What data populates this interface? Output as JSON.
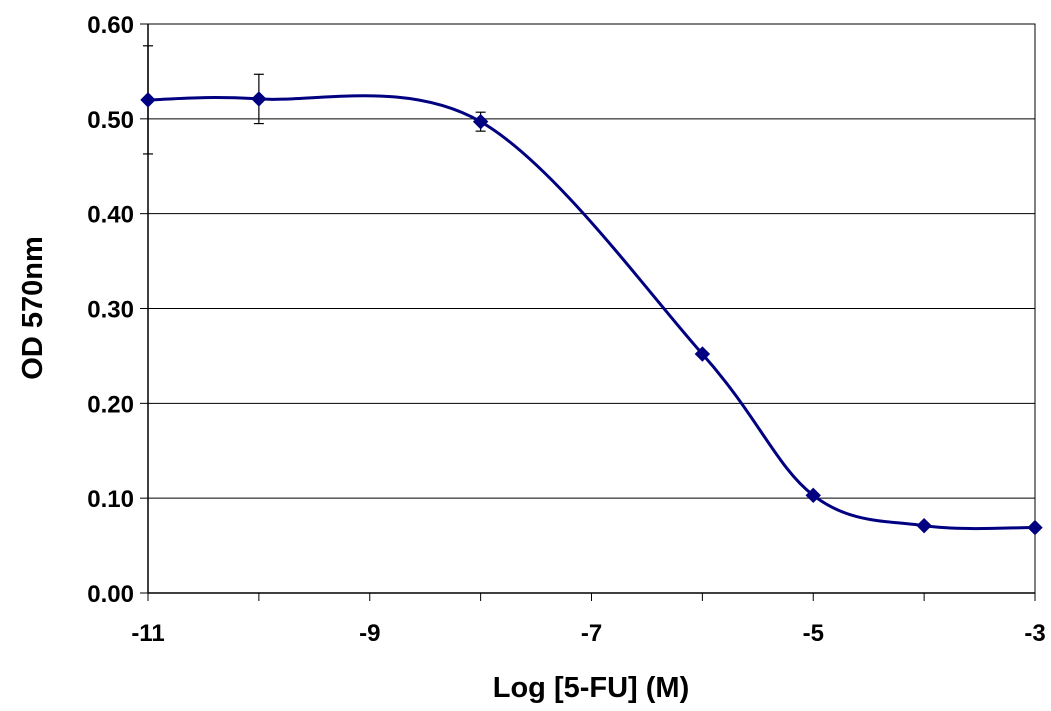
{
  "chart_data": {
    "type": "line",
    "title": "",
    "xlabel": "Log [5-FU] (M)",
    "ylabel": "OD 570nm",
    "xlim": [
      -11,
      -3
    ],
    "ylim": [
      0.0,
      0.6
    ],
    "x_ticks": [
      "-11",
      "-9",
      "-7",
      "-5",
      "-3"
    ],
    "x_tick_values": [
      -11,
      -9,
      -7,
      -5,
      -3
    ],
    "y_ticks": [
      "0.00",
      "0.10",
      "0.20",
      "0.30",
      "0.40",
      "0.50",
      "0.60"
    ],
    "y_tick_values": [
      0.0,
      0.1,
      0.2,
      0.3,
      0.4,
      0.5,
      0.6
    ],
    "grid": "horizontal",
    "legend": "none",
    "series": [
      {
        "color": "#000080",
        "marker": "diamond",
        "smooth": true,
        "x": [
          -11,
          -10,
          -8,
          -6,
          -5,
          -4,
          -3
        ],
        "y": [
          0.52,
          0.521,
          0.497,
          0.252,
          0.103,
          0.071,
          0.069
        ],
        "error": [
          0.057,
          0.026,
          0.01,
          0,
          0,
          0,
          0
        ]
      }
    ]
  }
}
